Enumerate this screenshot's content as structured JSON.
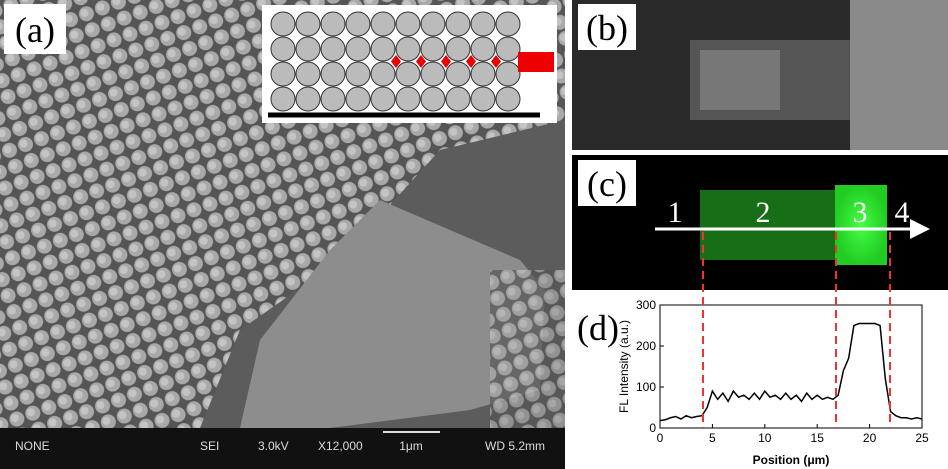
{
  "panels": {
    "a": "(a)",
    "b": "(b)",
    "c": "(c)",
    "d": "(d)"
  },
  "sem_info": [
    "NONE",
    "SEI",
    "3.0kV",
    "X12,000",
    "1μm",
    "WD 5.2mm"
  ],
  "regions": [
    "1",
    "2",
    "3",
    "4"
  ],
  "chart_data": {
    "type": "line",
    "x_label": "Position (μm)",
    "y_label": "FL Intensity (a.u.)",
    "x": [
      0,
      0.5,
      1,
      1.5,
      2,
      2.5,
      3,
      3.5,
      4,
      4.5,
      5,
      5.5,
      6,
      6.5,
      7,
      7.5,
      8,
      8.5,
      9,
      9.5,
      10,
      10.5,
      11,
      11.5,
      12,
      12.5,
      13,
      13.5,
      14,
      14.5,
      15,
      15.5,
      16,
      16.5,
      17,
      17.5,
      18,
      18.5,
      19,
      19.5,
      20,
      20.5,
      21,
      21.5,
      22,
      22.5,
      23,
      23.5,
      24,
      24.5,
      25
    ],
    "series": [
      {
        "color": "#000000",
        "values": [
          18,
          20,
          25,
          28,
          22,
          30,
          25,
          28,
          30,
          50,
          90,
          70,
          85,
          65,
          90,
          75,
          80,
          70,
          85,
          70,
          90,
          75,
          80,
          70,
          85,
          70,
          80,
          65,
          85,
          70,
          80,
          70,
          75,
          70,
          80,
          140,
          170,
          250,
          255,
          255,
          255,
          255,
          250,
          120,
          40,
          30,
          25,
          25,
          22,
          25,
          22
        ]
      }
    ],
    "xlim": [
      0,
      25
    ],
    "xticks": [
      0,
      5,
      10,
      15,
      20,
      25
    ],
    "ylim": [
      0,
      300
    ],
    "yticks": [
      0,
      100,
      200,
      300
    ]
  }
}
